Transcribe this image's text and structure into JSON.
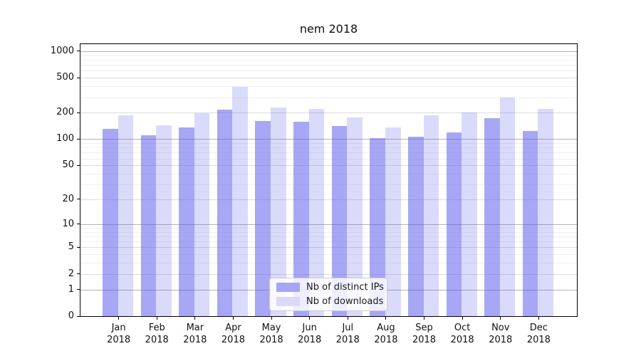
{
  "chart_data": {
    "type": "bar",
    "title": "nem 2018",
    "categories": [
      "Jan",
      "Feb",
      "Mar",
      "Apr",
      "May",
      "Jun",
      "Jul",
      "Aug",
      "Sep",
      "Oct",
      "Nov",
      "Dec"
    ],
    "category_year": "2018",
    "series": [
      {
        "name": "Nb of distinct IPs",
        "color": "rgba(86,86,237,0.52)",
        "legend_color": "#a6a6f4",
        "values": [
          131,
          110,
          135,
          216,
          162,
          159,
          140,
          102,
          106,
          119,
          173,
          124
        ]
      },
      {
        "name": "Nb of downloads",
        "color": "rgba(86,86,237,0.22)",
        "legend_color": "#dadaf8",
        "values": [
          185,
          145,
          198,
          395,
          230,
          219,
          177,
          136,
          185,
          200,
          299,
          221
        ]
      }
    ],
    "xlabel": "",
    "ylabel": "",
    "yticks": [
      0,
      1,
      2,
      5,
      10,
      20,
      50,
      100,
      200,
      500,
      1000
    ],
    "minor_yticks": [
      3,
      4,
      6,
      7,
      8,
      9,
      30,
      40,
      60,
      70,
      80,
      90,
      300,
      400,
      600,
      700,
      800,
      900
    ],
    "scale": "log1p",
    "ylim": [
      0,
      1200
    ],
    "grid": true,
    "legend_position": "lower center"
  }
}
